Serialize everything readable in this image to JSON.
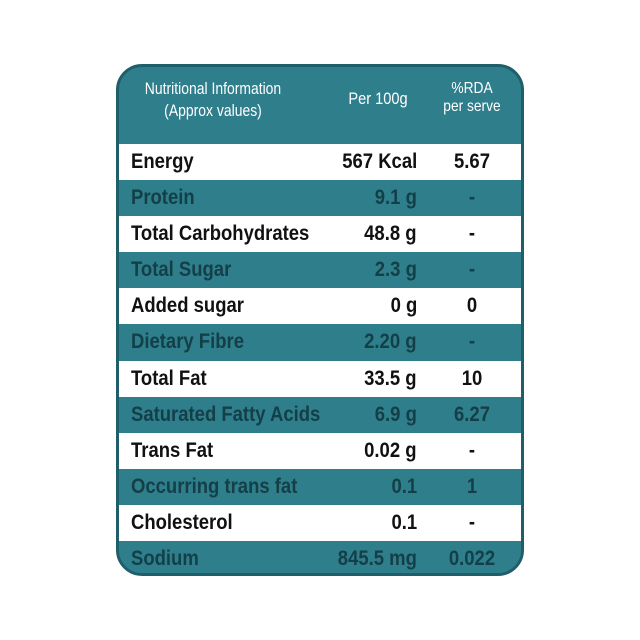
{
  "header": {
    "col1_line1": "Nutritional Information",
    "col1_line2": "(Approx values)",
    "col2": "Per 100g",
    "col3_line1": "%RDA",
    "col3_line2": "per serve"
  },
  "rows": [
    {
      "name": "Energy",
      "value": "567 Kcal",
      "rda": "5.67"
    },
    {
      "name": "Protein",
      "value": "9.1 g",
      "rda": "-"
    },
    {
      "name": "Total Carbohydrates",
      "value": "48.8 g",
      "rda": "-"
    },
    {
      "name": "Total Sugar",
      "value": "2.3 g",
      "rda": "-"
    },
    {
      "name": "Added sugar",
      "value": "0 g",
      "rda": "0"
    },
    {
      "name": "Dietary Fibre",
      "value": "2.20 g",
      "rda": "-"
    },
    {
      "name": "Total Fat",
      "value": "33.5 g",
      "rda": "10"
    },
    {
      "name": "Saturated Fatty Acids",
      "value": "6.9 g",
      "rda": "6.27"
    },
    {
      "name": "Trans Fat",
      "value": "0.02 g",
      "rda": "-"
    },
    {
      "name": "Occurring trans fat",
      "value": "0.1",
      "rda": "1"
    },
    {
      "name": "Cholesterol",
      "value": "0.1",
      "rda": "-"
    },
    {
      "name": "Sodium",
      "value": "845.5 mg",
      "rda": "0.022"
    }
  ]
}
